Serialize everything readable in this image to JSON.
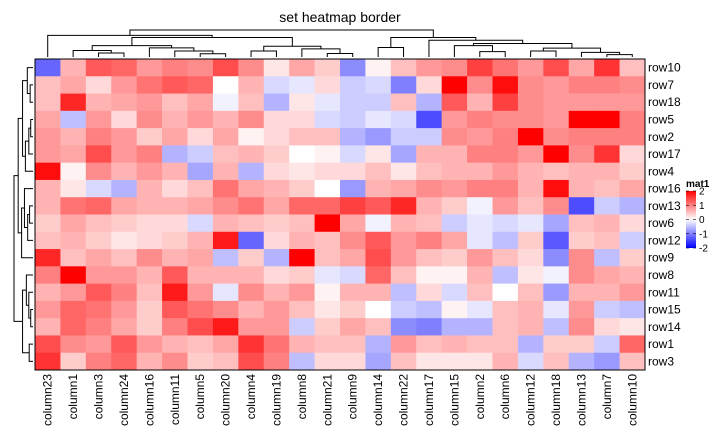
{
  "chart_data": {
    "type": "heatmap",
    "title": "set heatmap border",
    "rows": [
      "row10",
      "row7",
      "row18",
      "row5",
      "row2",
      "row17",
      "row4",
      "row16",
      "row13",
      "row6",
      "row12",
      "row9",
      "row8",
      "row11",
      "row15",
      "row14",
      "row1",
      "row3"
    ],
    "columns": [
      "column23",
      "column1",
      "column3",
      "column24",
      "column16",
      "column11",
      "column5",
      "column20",
      "column4",
      "column19",
      "column8",
      "column21",
      "column9",
      "column14",
      "column22",
      "column17",
      "column15",
      "column2",
      "column6",
      "column12",
      "column18",
      "column13",
      "column7",
      "column10"
    ],
    "values": [
      [
        -1.2,
        0.6,
        1.3,
        1.2,
        0.8,
        1.0,
        0.9,
        1.4,
        0.9,
        0.2,
        0.7,
        0.4,
        -0.9,
        0.1,
        0.5,
        0.8,
        0.9,
        1.5,
        1.1,
        0.8,
        1.4,
        0.7,
        1.6,
        0.5
      ],
      [
        0.5,
        0.7,
        0.3,
        0.8,
        1.1,
        1.3,
        1.2,
        0.0,
        0.6,
        -0.3,
        -0.2,
        0.3,
        -0.4,
        -0.3,
        -1.0,
        0.3,
        2.2,
        0.9,
        1.9,
        0.9,
        0.8,
        1.0,
        1.0,
        0.9
      ],
      [
        0.5,
        1.7,
        0.6,
        0.7,
        0.8,
        0.5,
        0.7,
        -0.1,
        0.5,
        -0.6,
        0.2,
        -0.2,
        -0.4,
        -0.4,
        0.5,
        -0.6,
        1.3,
        0.6,
        1.5,
        0.9,
        0.8,
        0.8,
        0.8,
        0.8
      ],
      [
        0.7,
        -0.5,
        0.8,
        0.3,
        0.9,
        0.6,
        0.8,
        0.6,
        0.9,
        0.3,
        0.3,
        -0.3,
        -0.4,
        -0.2,
        -0.3,
        -1.4,
        0.8,
        1.0,
        0.9,
        0.9,
        0.8,
        2.3,
        2.3,
        1.0
      ],
      [
        0.8,
        0.6,
        1.0,
        0.8,
        0.4,
        0.7,
        0.3,
        0.7,
        0.1,
        0.3,
        0.5,
        0.5,
        -0.6,
        -0.8,
        -0.4,
        -0.4,
        0.9,
        0.8,
        1.0,
        2.2,
        0.9,
        1.0,
        1.0,
        1.0
      ],
      [
        0.8,
        0.7,
        1.4,
        0.8,
        1.0,
        -0.6,
        -0.4,
        0.5,
        0.6,
        0.4,
        0.0,
        0.1,
        -0.3,
        0.2,
        -0.7,
        0.6,
        0.6,
        1.0,
        1.0,
        0.8,
        2.2,
        0.9,
        1.6,
        0.3
      ],
      [
        1.9,
        0.1,
        0.9,
        0.6,
        0.8,
        0.6,
        -0.7,
        0.6,
        -0.6,
        0.3,
        0.2,
        0.3,
        0.3,
        0.5,
        0.2,
        0.5,
        0.6,
        0.6,
        0.8,
        0.6,
        0.5,
        0.6,
        0.6,
        0.4
      ],
      [
        0.6,
        0.2,
        -0.3,
        -0.6,
        0.6,
        0.3,
        0.5,
        1.1,
        0.7,
        0.6,
        0.4,
        0.0,
        -0.8,
        0.6,
        0.7,
        0.9,
        0.8,
        1.0,
        1.0,
        0.6,
        1.9,
        0.6,
        0.5,
        0.7
      ],
      [
        0.6,
        1.1,
        1.2,
        0.7,
        0.6,
        0.6,
        0.7,
        0.9,
        1.1,
        0.7,
        1.2,
        1.2,
        1.5,
        1.3,
        1.7,
        0.6,
        0.4,
        -0.1,
        0.8,
        0.5,
        0.9,
        -1.4,
        -0.4,
        -0.6
      ],
      [
        0.4,
        0.7,
        0.5,
        0.4,
        0.3,
        0.3,
        -0.3,
        0.6,
        0.5,
        0.4,
        0.5,
        2.0,
        0.7,
        -0.1,
        0.6,
        0.5,
        -0.4,
        -0.2,
        -0.3,
        -0.2,
        -0.7,
        0.5,
        0.6,
        0.3
      ],
      [
        0.5,
        0.6,
        0.4,
        0.2,
        0.3,
        0.4,
        0.6,
        1.8,
        -1.2,
        0.3,
        0.6,
        0.5,
        0.9,
        1.3,
        0.8,
        1.0,
        0.7,
        -0.2,
        -0.5,
        0.4,
        -1.3,
        0.4,
        0.5,
        -0.4
      ],
      [
        1.7,
        0.5,
        0.7,
        0.5,
        0.9,
        0.6,
        0.7,
        -0.5,
        0.4,
        -0.6,
        2.0,
        0.5,
        0.7,
        1.4,
        0.8,
        0.5,
        0.4,
        0.8,
        0.5,
        0.3,
        -0.9,
        0.9,
        -0.5,
        0.4
      ],
      [
        1.0,
        2.1,
        0.8,
        0.8,
        0.6,
        1.3,
        0.6,
        0.6,
        0.6,
        0.3,
        0.4,
        -0.2,
        -0.3,
        1.2,
        0.5,
        0.1,
        0.1,
        0.6,
        -0.5,
        0.2,
        -0.1,
        0.9,
        0.7,
        0.6
      ],
      [
        0.6,
        0.8,
        1.3,
        1.0,
        0.5,
        1.8,
        0.8,
        -0.2,
        0.9,
        0.6,
        0.8,
        0.1,
        0.6,
        0.6,
        -0.5,
        0.3,
        -0.3,
        0.5,
        0.0,
        0.5,
        -0.8,
        0.6,
        0.6,
        0.8
      ],
      [
        0.8,
        1.2,
        1.1,
        0.8,
        0.4,
        1.3,
        1.1,
        0.9,
        0.6,
        0.8,
        0.5,
        0.2,
        0.4,
        0.0,
        -0.4,
        -0.5,
        0.1,
        -0.2,
        0.5,
        0.6,
        -0.2,
        0.8,
        -0.4,
        -0.5
      ],
      [
        0.6,
        1.2,
        1.0,
        0.7,
        0.4,
        1.0,
        1.4,
        1.8,
        0.8,
        0.8,
        -0.4,
        0.4,
        0.7,
        0.5,
        -0.9,
        -1.0,
        -0.6,
        -0.6,
        0.5,
        0.6,
        -0.5,
        0.9,
        0.3,
        0.2
      ],
      [
        1.4,
        0.9,
        0.8,
        1.3,
        0.8,
        0.6,
        0.5,
        0.7,
        1.6,
        1.1,
        0.6,
        0.5,
        0.5,
        -0.6,
        0.8,
        0.5,
        0.6,
        0.5,
        0.5,
        -0.6,
        0.4,
        0.4,
        -0.4,
        1.2
      ],
      [
        1.6,
        0.4,
        1.0,
        1.2,
        0.6,
        0.9,
        0.4,
        0.5,
        1.4,
        1.0,
        -0.5,
        0.3,
        0.3,
        -0.7,
        0.5,
        0.2,
        0.2,
        0.2,
        0.6,
        -0.3,
        0.5,
        -0.6,
        -0.8,
        0.5
      ]
    ],
    "color_scale": {
      "min": -2,
      "mid": 0,
      "max": 2,
      "low_color": "#0000ff",
      "mid_color": "#ffffff",
      "high_color": "#ff0000"
    },
    "legend": {
      "title": "mat1",
      "ticks": [
        2,
        1,
        0,
        -1,
        -2
      ],
      "placement": "right"
    },
    "row_dendrogram": "left",
    "column_dendrogram": "top",
    "border": true
  }
}
